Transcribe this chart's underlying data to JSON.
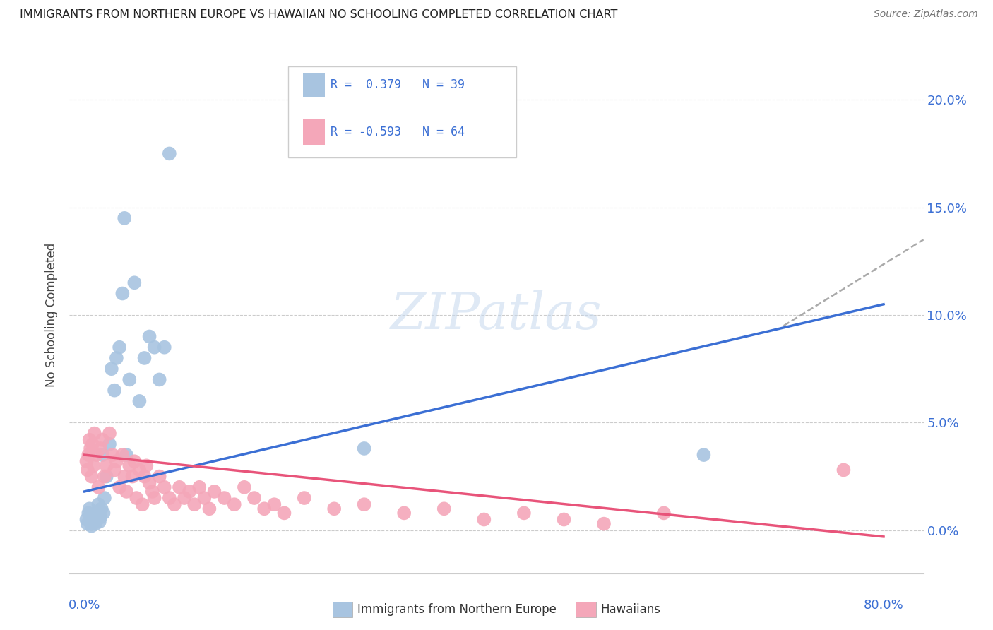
{
  "title": "IMMIGRANTS FROM NORTHERN EUROPE VS HAWAIIAN NO SCHOOLING COMPLETED CORRELATION CHART",
  "source": "Source: ZipAtlas.com",
  "ylabel": "No Schooling Completed",
  "blue_color": "#a8c4e0",
  "pink_color": "#f4a7b9",
  "blue_line_color": "#3b6fd4",
  "pink_line_color": "#e8547a",
  "dashed_line_color": "#aaaaaa",
  "blue_scatter_x": [
    0.002,
    0.003,
    0.004,
    0.005,
    0.006,
    0.007,
    0.008,
    0.009,
    0.01,
    0.011,
    0.012,
    0.013,
    0.014,
    0.015,
    0.016,
    0.017,
    0.018,
    0.019,
    0.02,
    0.022,
    0.025,
    0.027,
    0.03,
    0.032,
    0.035,
    0.038,
    0.04,
    0.042,
    0.045,
    0.05,
    0.055,
    0.06,
    0.065,
    0.07,
    0.075,
    0.08,
    0.085,
    0.28,
    0.62
  ],
  "blue_scatter_y": [
    0.5,
    0.3,
    0.8,
    1.0,
    0.5,
    0.2,
    0.4,
    0.6,
    0.7,
    0.3,
    0.5,
    0.8,
    1.2,
    0.4,
    0.6,
    1.0,
    3.5,
    0.8,
    1.5,
    2.5,
    4.0,
    7.5,
    6.5,
    8.0,
    8.5,
    11.0,
    14.5,
    3.5,
    7.0,
    11.5,
    6.0,
    8.0,
    9.0,
    8.5,
    7.0,
    8.5,
    17.5,
    3.8,
    3.5
  ],
  "pink_scatter_x": [
    0.002,
    0.003,
    0.004,
    0.005,
    0.006,
    0.007,
    0.008,
    0.009,
    0.01,
    0.012,
    0.014,
    0.016,
    0.018,
    0.02,
    0.022,
    0.025,
    0.028,
    0.03,
    0.032,
    0.035,
    0.038,
    0.04,
    0.042,
    0.045,
    0.048,
    0.05,
    0.052,
    0.055,
    0.058,
    0.06,
    0.062,
    0.065,
    0.068,
    0.07,
    0.075,
    0.08,
    0.085,
    0.09,
    0.095,
    0.1,
    0.105,
    0.11,
    0.115,
    0.12,
    0.125,
    0.13,
    0.14,
    0.15,
    0.16,
    0.17,
    0.18,
    0.19,
    0.2,
    0.22,
    0.25,
    0.28,
    0.32,
    0.36,
    0.4,
    0.44,
    0.48,
    0.52,
    0.58,
    0.76
  ],
  "pink_scatter_y": [
    3.2,
    2.8,
    3.5,
    4.2,
    3.8,
    2.5,
    4.0,
    3.0,
    4.5,
    3.5,
    2.0,
    3.8,
    4.2,
    2.5,
    3.0,
    4.5,
    3.5,
    2.8,
    3.2,
    2.0,
    3.5,
    2.5,
    1.8,
    3.0,
    2.5,
    3.2,
    1.5,
    2.8,
    1.2,
    2.5,
    3.0,
    2.2,
    1.8,
    1.5,
    2.5,
    2.0,
    1.5,
    1.2,
    2.0,
    1.5,
    1.8,
    1.2,
    2.0,
    1.5,
    1.0,
    1.8,
    1.5,
    1.2,
    2.0,
    1.5,
    1.0,
    1.2,
    0.8,
    1.5,
    1.0,
    1.2,
    0.8,
    1.0,
    0.5,
    0.8,
    0.5,
    0.3,
    0.8,
    2.8
  ],
  "blue_line_x": [
    0.0,
    0.8
  ],
  "blue_line_y": [
    1.8,
    10.5
  ],
  "dashed_line_x": [
    0.7,
    0.84
  ],
  "dashed_line_y": [
    9.5,
    13.5
  ],
  "pink_line_x": [
    0.0,
    0.8
  ],
  "pink_line_y": [
    3.5,
    -0.3
  ],
  "yticks": [
    0,
    5,
    10,
    15,
    20
  ],
  "xlim": [
    -0.015,
    0.84
  ],
  "ylim": [
    -2.0,
    22.0
  ],
  "legend_r_blue": "R =  0.379",
  "legend_n_blue": "N = 39",
  "legend_r_pink": "R = -0.593",
  "legend_n_pink": "N = 64"
}
